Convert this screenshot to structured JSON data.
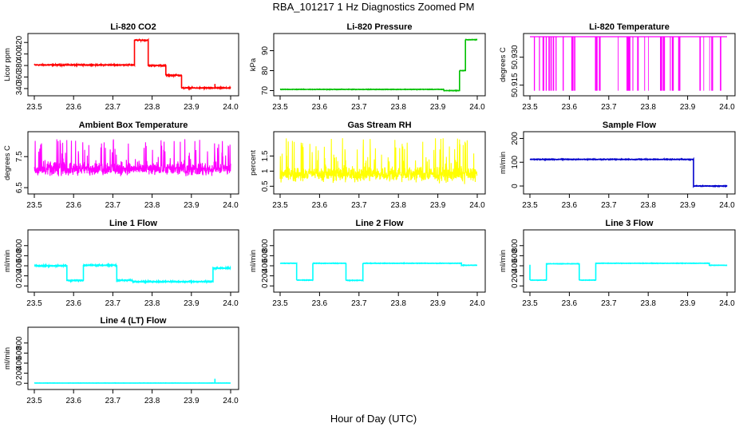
{
  "page": {
    "title": "RBA_101217  1 Hz Diagnostics Zoomed PM",
    "xlabel": "Hour of Day (UTC)"
  },
  "chart_data": [
    {
      "type": "line",
      "title": "Li-820 CO2",
      "ylabel": "Licor ppm",
      "xlim": [
        23.5,
        24.0
      ],
      "ylim": [
        333,
        430
      ],
      "xticks": [
        "23.5",
        "23.6",
        "23.7",
        "23.8",
        "23.9",
        "24.0"
      ],
      "yticks": [
        340,
        360,
        380,
        400,
        420
      ],
      "series": [
        {
          "color": "#ff0000",
          "segments": [
            [
              23.5,
              23.755,
              381
            ],
            [
              23.755,
              23.79,
              424
            ],
            [
              23.79,
              23.835,
              380
            ],
            [
              23.835,
              23.875,
              363
            ],
            [
              23.875,
              24.0,
              341
            ]
          ],
          "noise": 1.2,
          "spikes": [
            [
              23.96,
              348
            ]
          ]
        }
      ]
    },
    {
      "type": "line",
      "title": "Li-820 Pressure",
      "ylabel": "kPa",
      "xlim": [
        23.5,
        24.0
      ],
      "ylim": [
        69,
        97
      ],
      "xticks": [
        "23.5",
        "23.6",
        "23.7",
        "23.8",
        "23.9",
        "24.0"
      ],
      "yticks": [
        70,
        80,
        90
      ],
      "series": [
        {
          "color": "#00c000",
          "segments": [
            [
              23.5,
              23.915,
              70.6
            ],
            [
              23.915,
              23.955,
              70.0
            ],
            [
              23.955,
              23.97,
              80
            ],
            [
              23.97,
              24.0,
              95.5
            ]
          ],
          "noise": 0.15,
          "spikes": []
        }
      ]
    },
    {
      "type": "line",
      "title": "Li-820 Temperature",
      "ylabel": "degrees C",
      "xlim": [
        23.5,
        24.0
      ],
      "ylim": [
        50.911,
        50.941
      ],
      "xticks": [
        "23.5",
        "23.6",
        "23.7",
        "23.8",
        "23.9",
        "24.0"
      ],
      "yticks": [
        50.915,
        50.93
      ],
      "yticklabels": [
        "50.915",
        "50.930"
      ],
      "series": [
        {
          "color": "#ff00ff",
          "pattern": "drops",
          "base": 50.941,
          "low": 50.912,
          "drops": [
            23.51,
            23.523,
            23.532,
            23.54,
            23.547,
            23.552,
            23.558,
            23.565,
            23.583,
            23.605,
            23.612,
            23.665,
            23.67,
            23.675,
            23.723,
            23.745,
            23.75,
            23.753,
            23.76,
            23.772,
            23.79,
            23.8,
            23.83,
            23.837,
            23.855,
            23.86,
            23.876,
            23.93,
            23.94,
            23.955,
            23.96,
            23.982
          ]
        }
      ]
    },
    {
      "type": "line",
      "title": "Ambient Box Temperature",
      "ylabel": "degrees C",
      "xlim": [
        23.5,
        24.0
      ],
      "ylim": [
        6.4,
        8.2
      ],
      "xticks": [
        "23.5",
        "23.6",
        "23.7",
        "23.8",
        "23.9",
        "24.0"
      ],
      "yticks": [
        6.5,
        7.5
      ],
      "series": [
        {
          "color": "#ff00ff",
          "pattern": "noise",
          "center": 7.1,
          "spread": 0.3,
          "min": 6.6,
          "max": 8.1
        }
      ]
    },
    {
      "type": "line",
      "title": "Gas Stream RH",
      "ylabel": "percent",
      "xlim": [
        23.5,
        24.0
      ],
      "ylim": [
        0.35,
        2.2
      ],
      "xticks": [
        "23.5",
        "23.6",
        "23.7",
        "23.8",
        "23.9",
        "24.0"
      ],
      "yticks": [
        0.5,
        1.0,
        1.5
      ],
      "series": [
        {
          "color": "#ffff00",
          "pattern": "noise",
          "center": 0.9,
          "spread": 0.35,
          "min": 0.45,
          "max": 2.1
        }
      ]
    },
    {
      "type": "line",
      "title": "Sample Flow",
      "ylabel": "ml/min",
      "xlim": [
        23.5,
        24.0
      ],
      "ylim": [
        -20,
        215
      ],
      "xticks": [
        "23.5",
        "23.6",
        "23.7",
        "23.8",
        "23.9",
        "24.0"
      ],
      "yticks": [
        0,
        100,
        200
      ],
      "series": [
        {
          "color": "#0000cc",
          "segments": [
            [
              23.5,
              23.915,
              112
            ],
            [
              23.915,
              24.0,
              0
            ]
          ],
          "noise": 2.0,
          "spikes": []
        }
      ]
    },
    {
      "type": "line",
      "title": "Line 1 Flow",
      "ylabel": "ml/min",
      "xlim": [
        23.5,
        24.0
      ],
      "ylim": [
        -60,
        1050
      ],
      "xticks": [
        "23.5",
        "23.6",
        "23.7",
        "23.8",
        "23.9",
        "24.0"
      ],
      "yticks": [
        0,
        200,
        400,
        600,
        800
      ],
      "series": [
        {
          "color": "#00ffff",
          "segments": [
            [
              23.5,
              23.583,
              400
            ],
            [
              23.583,
              23.625,
              110
            ],
            [
              23.625,
              23.71,
              410
            ],
            [
              23.71,
              23.75,
              110
            ],
            [
              23.75,
              23.955,
              85
            ],
            [
              23.955,
              24.0,
              350
            ]
          ],
          "noise": 15,
          "spikes": []
        }
      ]
    },
    {
      "type": "line",
      "title": "Line 2 Flow",
      "ylabel": "ml/min",
      "xlim": [
        23.5,
        24.0
      ],
      "ylim": [
        -60,
        1050
      ],
      "xticks": [
        "23.5",
        "23.6",
        "23.7",
        "23.8",
        "23.9",
        "24.0"
      ],
      "yticks": [
        0,
        200,
        400,
        600,
        800
      ],
      "series": [
        {
          "color": "#00ffff",
          "segments": [
            [
              23.5,
              23.542,
              450
            ],
            [
              23.542,
              23.583,
              115
            ],
            [
              23.583,
              23.667,
              450
            ],
            [
              23.667,
              23.71,
              110
            ],
            [
              23.71,
              23.96,
              450
            ],
            [
              23.96,
              24.0,
              410
            ]
          ],
          "noise": 6,
          "spikes": []
        }
      ]
    },
    {
      "type": "line",
      "title": "Line 3 Flow",
      "ylabel": "ml/min",
      "xlim": [
        23.5,
        24.0
      ],
      "ylim": [
        -60,
        1050
      ],
      "xticks": [
        "23.5",
        "23.6",
        "23.7",
        "23.8",
        "23.9",
        "24.0"
      ],
      "yticks": [
        0,
        200,
        400,
        600,
        800
      ],
      "series": [
        {
          "color": "#00ffff",
          "segments": [
            [
              23.5,
              23.542,
              115
            ],
            [
              23.542,
              23.625,
              440
            ],
            [
              23.625,
              23.667,
              115
            ],
            [
              23.667,
              23.955,
              450
            ],
            [
              23.955,
              24.0,
              410
            ]
          ],
          "noise": 5,
          "spikes": [
            [
              23.5,
              420
            ]
          ]
        }
      ]
    },
    {
      "type": "line",
      "title": "Line 4 (LT) Flow",
      "ylabel": "ml/min",
      "xlim": [
        23.5,
        24.0
      ],
      "ylim": [
        -60,
        1050
      ],
      "xticks": [
        "23.5",
        "23.6",
        "23.7",
        "23.8",
        "23.9",
        "24.0"
      ],
      "yticks": [
        0,
        200,
        400,
        600,
        800
      ],
      "series": [
        {
          "color": "#00ffff",
          "segments": [
            [
              23.5,
              24.0,
              5
            ]
          ],
          "noise": 2,
          "spikes": [
            [
              23.96,
              90
            ]
          ]
        }
      ]
    }
  ]
}
